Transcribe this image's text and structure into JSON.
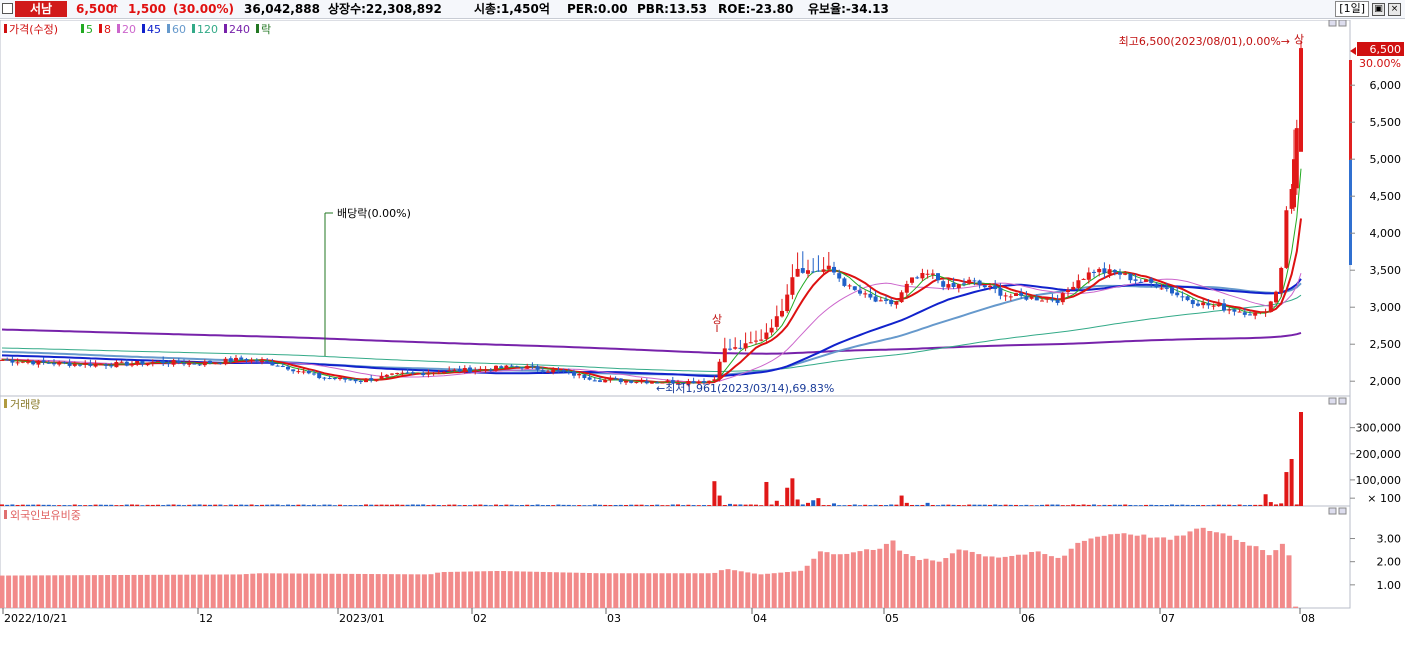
{
  "header": {
    "stock_name": "서남",
    "price": "6,500",
    "change_arrow": "↑",
    "change": "1,500",
    "change_pct": "(30.00%)",
    "volume": "36,042,888",
    "listed_shares": "상장수:22,308,892",
    "market_cap": "시총:1,450억",
    "per": "PER:0.00",
    "pbr": "PBR:13.53",
    "roe": "ROE:-23.80",
    "retention": "유보율:-34.13",
    "period": "[1일]"
  },
  "price_panel": {
    "legend": [
      {
        "label": "가격(수정)",
        "color": "#d01010"
      },
      {
        "label": "5",
        "color": "#22aa22"
      },
      {
        "label": "8",
        "color": "#dd1111"
      },
      {
        "label": "20",
        "color": "#cc66cc"
      },
      {
        "label": "45",
        "color": "#1122cc"
      },
      {
        "label": "60",
        "color": "#6699cc"
      },
      {
        "label": "120",
        "color": "#33aa88"
      },
      {
        "label": "240",
        "color": "#7722aa"
      },
      {
        "label": "락",
        "color": "#227722"
      }
    ],
    "high_annotation": "최고6,500(2023/08/01),0.00%→",
    "low_annotation": "←최저1,961(2023/03/14),69.83%",
    "dividend_annotation": "배당락(0.00%)",
    "upper_limit_marks": [
      "상",
      "상"
    ],
    "current_price_tag": "6,500",
    "current_pct_tag": "30.00%",
    "y_ticks": [
      "6,000",
      "5,500",
      "5,000",
      "4,500",
      "4,000",
      "3,500",
      "3,000",
      "2,500",
      "2,000"
    ]
  },
  "volume_panel": {
    "title": "거래량",
    "y_ticks": [
      "300,000",
      "200,000",
      "100,000",
      "× 100"
    ]
  },
  "foreign_panel": {
    "title": "외국인보유비중",
    "y_ticks": [
      "3.00",
      "2.00",
      "1.00"
    ]
  },
  "x_axis": {
    "labels": [
      "2022/10/21",
      "12",
      "2023/01",
      "02",
      "03",
      "04",
      "05",
      "06",
      "07",
      "08"
    ]
  },
  "chart_data": [
    {
      "type": "candlestick",
      "title": "가격(수정)",
      "period": "daily",
      "date_range": [
        "2022/10/21",
        "2023/08/01"
      ],
      "ylim": [
        1800,
        6800
      ],
      "high": {
        "value": 6500,
        "date": "2023/08/01"
      },
      "low": {
        "value": 1961,
        "date": "2023/03/14"
      },
      "moving_averages": [
        "5",
        "8",
        "20",
        "45",
        "60",
        "120",
        "240"
      ],
      "approx_close_by_month": [
        {
          "x": "2022/10/21",
          "close": 2300
        },
        {
          "x": "2022/12",
          "close": 2250
        },
        {
          "x": "2023/01",
          "close": 2000
        },
        {
          "x": "2023/02",
          "close": 2150
        },
        {
          "x": "2023/03",
          "close": 2000
        },
        {
          "x": "2023/04",
          "close": 3500
        },
        {
          "x": "2023/05",
          "close": 3100
        },
        {
          "x": "2023/06",
          "close": 3150
        },
        {
          "x": "2023/07",
          "close": 3250
        },
        {
          "x": "2023/08/01",
          "close": 6500
        }
      ]
    },
    {
      "type": "bar",
      "title": "거래량",
      "unit": "× 100",
      "ylim": [
        0,
        360000
      ],
      "notable": [
        {
          "x": "2023/03 late",
          "value": 95000
        },
        {
          "x": "2023/04 early",
          "value": 105000
        },
        {
          "x": "2023/07/31",
          "value": 180000
        },
        {
          "x": "2023/08/01",
          "value": 360000
        }
      ]
    },
    {
      "type": "bar",
      "title": "외국인보유비중",
      "ylim": [
        0,
        3.8
      ],
      "approx_by_month": [
        {
          "x": "2022/10/21",
          "value": 1.4
        },
        {
          "x": "2022/12",
          "value": 1.45
        },
        {
          "x": "2023/01",
          "value": 1.4
        },
        {
          "x": "2023/02",
          "value": 1.5
        },
        {
          "x": "2023/03",
          "value": 1.45
        },
        {
          "x": "2023/04",
          "value": 2.3
        },
        {
          "x": "2023/05",
          "value": 2.4
        },
        {
          "x": "2023/06",
          "value": 2.4
        },
        {
          "x": "2023/07",
          "value": 3.3
        },
        {
          "x": "2023/08/01",
          "value": 0.05
        }
      ]
    }
  ]
}
